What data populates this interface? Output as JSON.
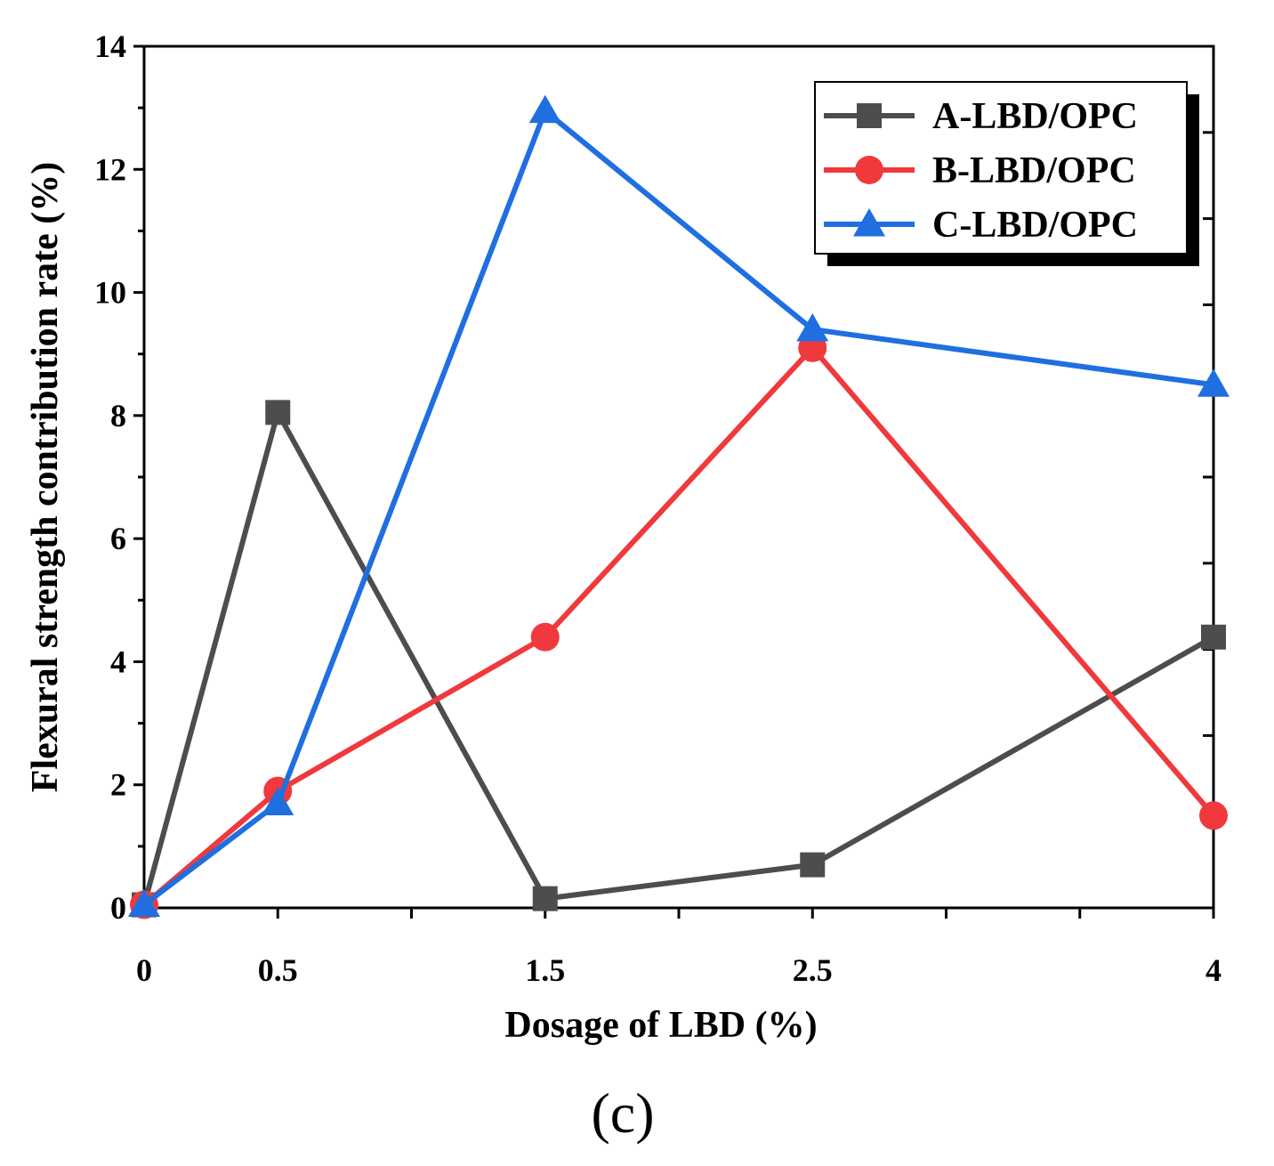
{
  "chart_data": {
    "type": "line",
    "title": "",
    "xlabel": "Dosage of LBD (%)",
    "ylabel": "Flexural strength contribution rate (%)",
    "x_tick_labels": [
      "0",
      "0.5",
      "1.5",
      "2.5",
      "4"
    ],
    "x_positions": [
      0,
      1,
      3,
      5,
      8
    ],
    "x_range": [
      0,
      8
    ],
    "ylim": [
      0,
      14
    ],
    "y_ticks": [
      0,
      2,
      4,
      6,
      8,
      10,
      12,
      14
    ],
    "y_tick_labels": [
      "0",
      "2",
      "4",
      "6",
      "8",
      "10",
      "12",
      "14"
    ],
    "legend_position": "top-right",
    "grid": false,
    "series": [
      {
        "name": "A-LBD/OPC",
        "color": "#4d4d4d",
        "marker": "square",
        "values": [
          0.05,
          8.05,
          0.15,
          0.7,
          4.4
        ]
      },
      {
        "name": "B-LBD/OPC",
        "color": "#f0393c",
        "marker": "circle",
        "values": [
          0.05,
          1.9,
          4.4,
          9.1,
          1.5
        ]
      },
      {
        "name": "C-LBD/OPC",
        "color": "#1f6fe0",
        "marker": "triangle",
        "values": [
          0.05,
          1.7,
          12.95,
          9.4,
          8.5
        ]
      }
    ]
  },
  "panel_label": "(c)"
}
